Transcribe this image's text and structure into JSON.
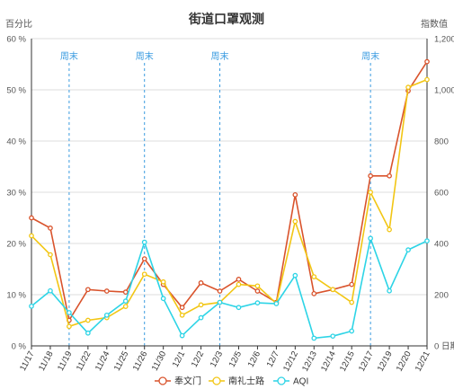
{
  "chart_data": {
    "type": "line",
    "title": "街道口罩观测",
    "y_left_label": "百分比",
    "y_right_label": "指数值",
    "x_end_label": "日期",
    "ylim_left": [
      0,
      60
    ],
    "ylim_right": [
      0,
      1200
    ],
    "left_ticks": [
      "0 %",
      "10 %",
      "20 %",
      "30 %",
      "40 %",
      "50 %",
      "60 %"
    ],
    "right_ticks": [
      "0",
      "200",
      "400",
      "600",
      "800",
      "1,000",
      "1,200"
    ],
    "categories": [
      "11/17",
      "11/18",
      "11/19",
      "11/22",
      "11/24",
      "11/25",
      "11/26",
      "11/30",
      "12/1",
      "12/2",
      "12/3",
      "12/5",
      "12/6",
      "12/7",
      "12/12",
      "12/13",
      "12/14",
      "12/15",
      "12/17",
      "12/19",
      "12/20",
      "12/21"
    ],
    "series": [
      {
        "name": "奉文门",
        "axis": "left",
        "color": "#d9532c",
        "values": [
          25,
          23,
          5,
          11,
          10.7,
          10.5,
          17,
          12,
          7.5,
          12.3,
          10.7,
          13,
          10.7,
          8.5,
          29.5,
          10.2,
          11,
          12,
          33.2,
          33.2,
          49.8,
          55.5
        ]
      },
      {
        "name": "南礼士路",
        "axis": "left",
        "color": "#f2c614",
        "values": [
          21.5,
          17.8,
          3.8,
          5,
          5.5,
          7.7,
          14,
          12.5,
          6,
          8,
          8.5,
          12,
          11.7,
          8.3,
          24.3,
          13.5,
          11,
          8.5,
          30,
          22.7,
          50.5,
          52
        ]
      },
      {
        "name": "AQI",
        "axis": "right",
        "color": "#2dd4e6",
        "values": [
          155,
          215,
          130,
          50,
          120,
          175,
          405,
          185,
          40,
          110,
          170,
          150,
          168,
          165,
          275,
          30,
          38,
          58,
          420,
          215,
          375,
          410
        ]
      }
    ],
    "weekend_label": "周末",
    "weekend_markers": [
      "11/19",
      "11/26",
      "12/3",
      "12/17"
    ],
    "grid": true,
    "legend_position": "bottom"
  }
}
